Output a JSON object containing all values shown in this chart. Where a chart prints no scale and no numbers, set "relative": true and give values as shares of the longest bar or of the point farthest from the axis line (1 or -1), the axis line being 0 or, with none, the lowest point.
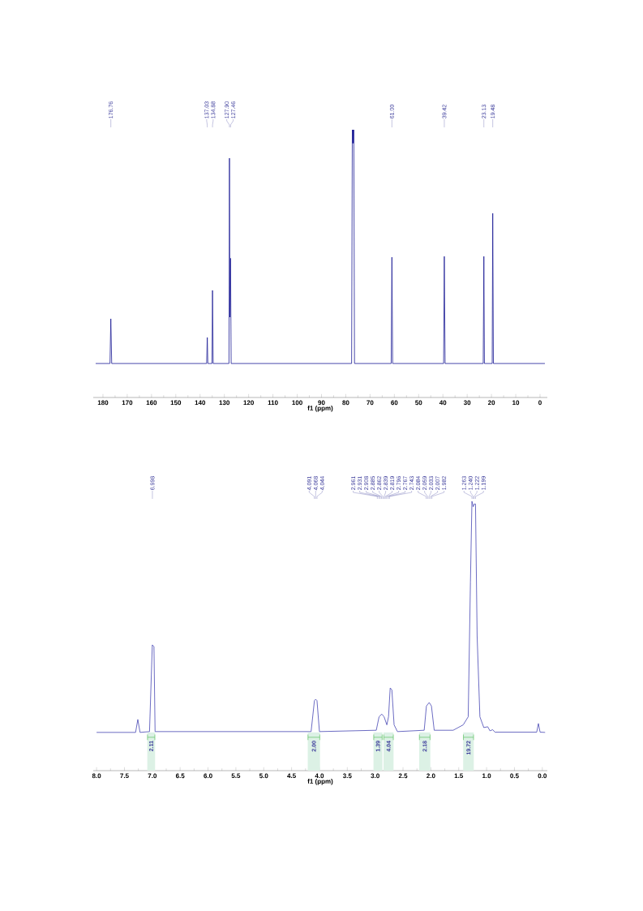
{
  "chart_data": [
    {
      "type": "line",
      "relative": true,
      "xlabel": "f1 (ppm)",
      "xlim": [
        184,
        -3
      ],
      "color": "#1c1c96",
      "xticks": [
        180,
        170,
        160,
        150,
        140,
        130,
        120,
        110,
        100,
        90,
        80,
        70,
        60,
        50,
        40,
        30,
        20,
        10,
        0
      ],
      "x": [
        183,
        177.1,
        176.76,
        176.4,
        137.3,
        137.03,
        136.8,
        135.1,
        134.88,
        134.6,
        128.1,
        127.9,
        127.7,
        127.46,
        127.2,
        77.6,
        77.3,
        77.15,
        77.0,
        76.85,
        76.7,
        76.4,
        61.3,
        61.0,
        60.7,
        39.7,
        39.42,
        39.1,
        23.4,
        23.13,
        22.9,
        19.7,
        19.48,
        19.2,
        -2
      ],
      "values": [
        0.127,
        0.127,
        0.294,
        0.127,
        0.127,
        0.224,
        0.127,
        0.127,
        0.4,
        0.127,
        0.127,
        0.894,
        0.3,
        0.52,
        0.127,
        0.127,
        1.0,
        0.95,
        1.0,
        0.95,
        1.0,
        0.127,
        0.127,
        0.524,
        0.127,
        0.127,
        0.527,
        0.127,
        0.127,
        0.527,
        0.127,
        0.127,
        0.688,
        0.127,
        0.127
      ],
      "annotations": [
        {
          "text": "176.76",
          "x": 176.76
        },
        {
          "text": "137.03",
          "x": 137.03
        },
        {
          "text": "134.88",
          "x": 134.88
        },
        {
          "text": "127.90",
          "x": 127.9
        },
        {
          "text": "127.46",
          "x": 127.46
        },
        {
          "text": "61.00",
          "x": 61.0
        },
        {
          "text": "39.42",
          "x": 39.42
        },
        {
          "text": "23.13",
          "x": 23.13
        },
        {
          "text": "19.48",
          "x": 19.48
        }
      ]
    },
    {
      "type": "line",
      "relative": true,
      "xlabel": "f1 (ppm)",
      "xlim": [
        8.06,
        -0.09
      ],
      "color": "#4646b4",
      "xticks": [
        {
          "value": 8,
          "label": "8.0"
        },
        {
          "value": 7.5,
          "label": "7.5"
        },
        {
          "value": 7,
          "label": "7.0"
        },
        {
          "value": 6.5,
          "label": "6.5"
        },
        {
          "value": 6,
          "label": "6.0"
        },
        {
          "value": 5.5,
          "label": "5.5"
        },
        {
          "value": 5,
          "label": "5.0"
        },
        {
          "value": 4.5,
          "label": "4.5"
        },
        {
          "value": 4,
          "label": "4.0"
        },
        {
          "value": 3.5,
          "label": "3.5"
        },
        {
          "value": 3,
          "label": "3.0"
        },
        {
          "value": 2.5,
          "label": "2.5"
        },
        {
          "value": 2,
          "label": "2.0"
        },
        {
          "value": 1.5,
          "label": "1.5"
        },
        {
          "value": 1,
          "label": "1.0"
        },
        {
          "value": 0.5,
          "label": "0.5"
        },
        {
          "value": 0,
          "label": "0.0"
        }
      ],
      "x": [
        8.0,
        7.3,
        7.26,
        7.22,
        7.05,
        7.0,
        6.97,
        6.95,
        4.15,
        4.09,
        4.068,
        4.044,
        4.0,
        2.98,
        2.93,
        2.88,
        2.84,
        2.79,
        2.76,
        2.73,
        2.7,
        2.66,
        2.6,
        2.12,
        2.08,
        2.03,
        1.99,
        1.94,
        1.6,
        1.42,
        1.33,
        1.29,
        1.263,
        1.24,
        1.222,
        1.199,
        1.17,
        1.12,
        1.05,
        0.98,
        0.94,
        0.89,
        0.85,
        0.1,
        0.07,
        0.04,
        -0.05
      ],
      "values": [
        0.142,
        0.142,
        0.19,
        0.142,
        0.145,
        0.467,
        0.46,
        0.145,
        0.145,
        0.26,
        0.265,
        0.26,
        0.145,
        0.15,
        0.2,
        0.21,
        0.2,
        0.17,
        0.2,
        0.307,
        0.3,
        0.17,
        0.145,
        0.15,
        0.24,
        0.253,
        0.24,
        0.15,
        0.15,
        0.17,
        0.2,
        0.7,
        1.0,
        0.98,
        0.99,
        0.99,
        0.5,
        0.2,
        0.16,
        0.163,
        0.148,
        0.152,
        0.143,
        0.143,
        0.175,
        0.143,
        0.142
      ],
      "annotations": [
        {
          "text": "6.998",
          "x": 6.998
        },
        {
          "text": "4.091",
          "x": 4.091
        },
        {
          "text": "4.068",
          "x": 4.068
        },
        {
          "text": "4.044",
          "x": 4.044
        },
        {
          "text": "2.961",
          "x": 2.961
        },
        {
          "text": "2.931",
          "x": 2.931
        },
        {
          "text": "2.908",
          "x": 2.908
        },
        {
          "text": "2.885",
          "x": 2.885
        },
        {
          "text": "2.862",
          "x": 2.862
        },
        {
          "text": "2.839",
          "x": 2.839
        },
        {
          "text": "2.819",
          "x": 2.819
        },
        {
          "text": "2.796",
          "x": 2.796
        },
        {
          "text": "2.767",
          "x": 2.767
        },
        {
          "text": "2.743",
          "x": 2.743
        },
        {
          "text": "2.084",
          "x": 2.084
        },
        {
          "text": "2.059",
          "x": 2.059
        },
        {
          "text": "2.033",
          "x": 2.033
        },
        {
          "text": "2.007",
          "x": 2.007
        },
        {
          "text": "1.982",
          "x": 1.982
        },
        {
          "text": "1.263",
          "x": 1.263
        },
        {
          "text": "1.240",
          "x": 1.24
        },
        {
          "text": "1.222",
          "x": 1.222
        },
        {
          "text": "1.199",
          "x": 1.199
        }
      ],
      "bands": [
        {
          "axis": "x",
          "from": 7.09,
          "to": 6.95,
          "label": "2.11",
          "color": "#dcf1e5"
        },
        {
          "axis": "x",
          "from": 4.21,
          "to": 3.99,
          "label": "2.00",
          "color": "#dcf1e5"
        },
        {
          "axis": "x",
          "from": 3.03,
          "to": 2.87,
          "label": "1.39",
          "color": "#dcf1e5"
        },
        {
          "axis": "x",
          "from": 2.85,
          "to": 2.67,
          "label": "4.04",
          "color": "#dcf1e5"
        },
        {
          "axis": "x",
          "from": 2.21,
          "to": 2.01,
          "label": "2.18",
          "color": "#dcf1e5"
        },
        {
          "axis": "x",
          "from": 1.42,
          "to": 1.23,
          "label": "19.72",
          "color": "#dcf1e5"
        }
      ]
    }
  ]
}
